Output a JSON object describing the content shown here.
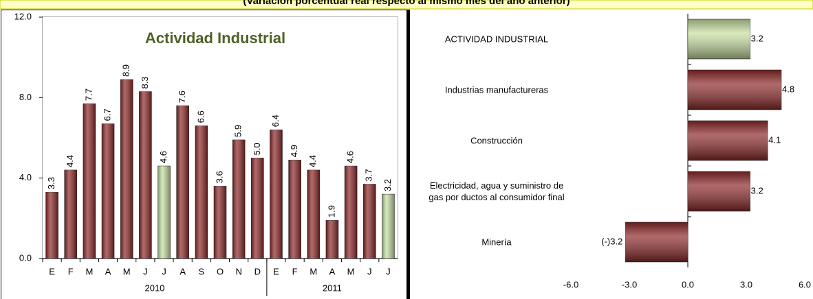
{
  "banner": "(Variación porcentual real respecto al mismo mes del año anterior)",
  "chart_data": [
    {
      "type": "bar",
      "title": "Actividad Industrial",
      "categories": [
        "E",
        "F",
        "M",
        "A",
        "M",
        "J",
        "J",
        "A",
        "S",
        "O",
        "N",
        "D",
        "E",
        "F",
        "M",
        "A",
        "M",
        "J",
        "J"
      ],
      "x_groups": [
        "2010",
        "2011"
      ],
      "values": [
        3.3,
        4.4,
        7.7,
        6.7,
        8.9,
        8.3,
        4.6,
        7.6,
        6.6,
        3.6,
        5.9,
        5.0,
        6.4,
        4.9,
        4.4,
        1.9,
        4.6,
        3.7,
        3.2
      ],
      "value_labels": [
        "3.3",
        "4.4",
        "7.7",
        "6.7",
        "8.9",
        "8.3",
        "4.6",
        "7.6",
        "6.6",
        "3.6",
        "5.9",
        "5.0",
        "6.4",
        "4.9",
        "4.4",
        "1.9",
        "4.6",
        "3.7",
        "3.2"
      ],
      "colors": [
        "#8e2a2a",
        "#8e2a2a",
        "#8e2a2a",
        "#8e2a2a",
        "#8e2a2a",
        "#8e2a2a",
        "#c9e0a2",
        "#8e2a2a",
        "#8e2a2a",
        "#8e2a2a",
        "#8e2a2a",
        "#8e2a2a",
        "#8e2a2a",
        "#8e2a2a",
        "#8e2a2a",
        "#8e2a2a",
        "#8e2a2a",
        "#8e2a2a",
        "#c9e0a2"
      ],
      "ylim": [
        0,
        12
      ],
      "yticks": [
        {
          "value": 0,
          "label": "0.0"
        },
        {
          "value": 4,
          "label": "4.0"
        },
        {
          "value": 8,
          "label": "8.0"
        },
        {
          "value": 12,
          "label": "12.0"
        }
      ]
    },
    {
      "type": "hbar",
      "categories": [
        "ACTIVIDAD INDUSTRIAL",
        "Industrias manufactureras",
        "Construcción",
        "Electricidad, agua y suministro de gas por ductos al consumidor final",
        "Minería"
      ],
      "values": [
        3.2,
        4.8,
        4.1,
        3.2,
        -3.2
      ],
      "value_labels": [
        "3.2",
        "4.8",
        "4.1",
        "3.2",
        "(-)3.2"
      ],
      "colors": [
        "#c9e0a2",
        "#8e2a2a",
        "#8e2a2a",
        "#8e2a2a",
        "#8e2a2a"
      ],
      "xlim": [
        -6,
        6
      ],
      "xticks": [
        {
          "value": -6,
          "label": "-6.0"
        },
        {
          "value": -3,
          "label": "-3.0"
        },
        {
          "value": 0,
          "label": "0.0"
        },
        {
          "value": 3,
          "label": "3.0"
        },
        {
          "value": 6,
          "label": "6.0"
        }
      ]
    }
  ]
}
